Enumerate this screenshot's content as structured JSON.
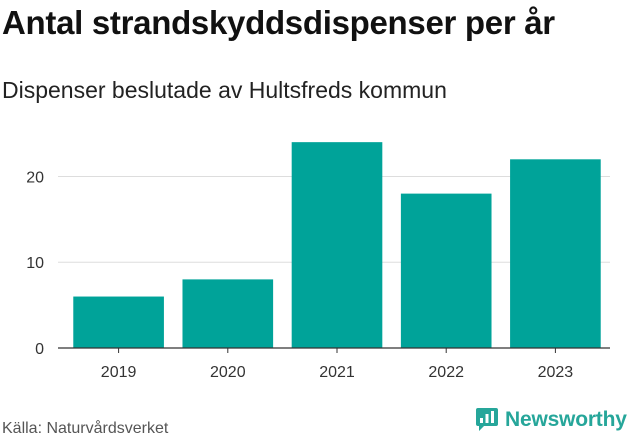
{
  "chart_data": {
    "type": "bar",
    "title": "Antal strandskyddsdispenser per år",
    "subtitle": "Dispenser beslutade av Hultsfreds kommun",
    "categories": [
      "2019",
      "2020",
      "2021",
      "2022",
      "2023"
    ],
    "values": [
      6,
      8,
      24,
      18,
      22
    ],
    "ylim": [
      0,
      26
    ],
    "yticks": [
      0,
      10,
      20
    ],
    "xlabel": "",
    "ylabel": "",
    "grid": true,
    "bar_color": "#00a399"
  },
  "footer": {
    "source": "Källa: Naturvårdsverket",
    "brand": "Newsworthy",
    "brand_icon": "newsworthy-logo-icon",
    "brand_color": "#26a69a"
  }
}
